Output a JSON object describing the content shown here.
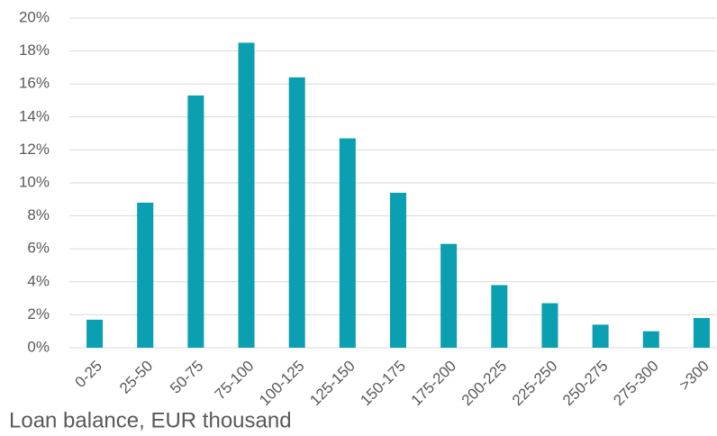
{
  "chart_data": {
    "type": "bar",
    "x_label": "Loan balance, EUR thousand",
    "categories": [
      "0-25",
      "25-50",
      "50-75",
      "75-100",
      "100-125",
      "125-150",
      "150-175",
      "175-200",
      "200-225",
      "225-250",
      "250-275",
      "275-300",
      ">300"
    ],
    "values": [
      1.7,
      8.8,
      15.3,
      18.5,
      16.4,
      12.7,
      9.4,
      6.3,
      3.8,
      2.7,
      1.4,
      1.0,
      1.8
    ],
    "color": "#0a9fb1",
    "ylim": [
      0,
      20
    ],
    "yticks": [
      {
        "value": 0,
        "label": "0%"
      },
      {
        "value": 2,
        "label": "2%"
      },
      {
        "value": 4,
        "label": "4%"
      },
      {
        "value": 6,
        "label": "6%"
      },
      {
        "value": 8,
        "label": "8%"
      },
      {
        "value": 10,
        "label": "10%"
      },
      {
        "value": 12,
        "label": "12%"
      },
      {
        "value": 14,
        "label": "14%"
      },
      {
        "value": 16,
        "label": "16%"
      },
      {
        "value": 18,
        "label": "18%"
      },
      {
        "value": 20,
        "label": "20%"
      }
    ],
    "grid": true
  }
}
